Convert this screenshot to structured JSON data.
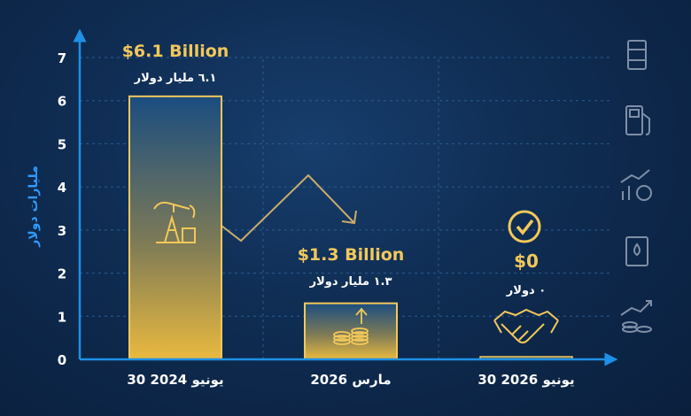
{
  "chart_data": {
    "type": "bar",
    "ylabel": "مليارات دولار",
    "ylim": [
      0,
      7
    ],
    "yticks": [
      "0",
      "1",
      "2",
      "3",
      "4",
      "5",
      "6",
      "7"
    ],
    "categories": [
      "30 يونيو 2024",
      "مارس 2026",
      "30 يونيو 2026"
    ],
    "values": [
      6.1,
      1.3,
      0
    ],
    "labels_en": [
      "$6.1 Billion",
      "$1.3 Billion",
      "$0"
    ],
    "labels_ar": [
      "٦.١ مليار دولار",
      "١.٣ مليار دولار",
      "٠ دولار"
    ],
    "grid": true,
    "colors": {
      "accent": "#f2c85a",
      "axis": "#1e90e6",
      "bar_top": "#1a4d80",
      "bar_bottom": "#e9b93f",
      "text": "#ffffff"
    }
  },
  "icons": {
    "bar_icons": [
      "oil-pump-icon",
      "coin-stack-icon",
      "handshake-icon"
    ],
    "side_icons": [
      "oil-barrel-icon",
      "fuel-pump-icon",
      "growth-coins-icon",
      "oil-drop-barrel-icon",
      "rising-coins-icon"
    ],
    "check": "checkmark-circle-icon"
  }
}
